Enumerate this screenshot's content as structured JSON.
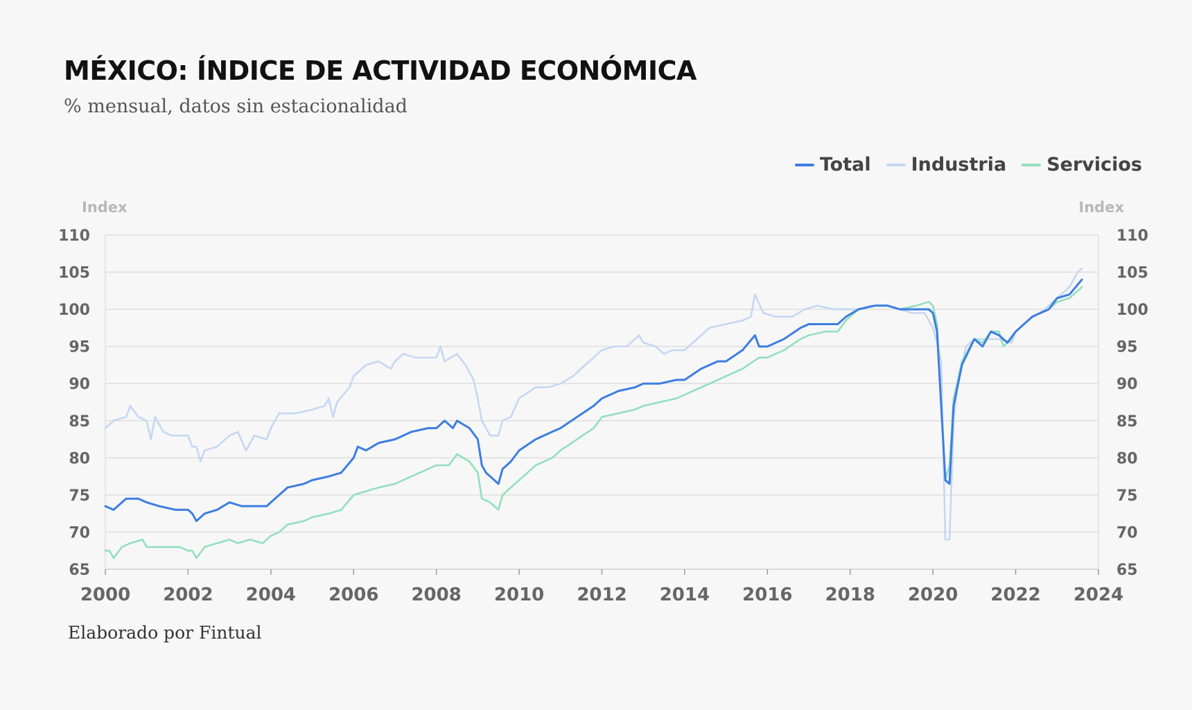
{
  "title": "MÉXICO: ÍNDICE DE ACTIVIDAD ECONÓMICA",
  "subtitle": "% mensual, datos sin estacionalidad",
  "credit": "Elaborado por Fintual",
  "chart_data": {
    "type": "line",
    "title": "MÉXICO: ÍNDICE DE ACTIVIDAD ECONÓMICA",
    "subtitle": "% mensual, datos sin estacionalidad",
    "ylabel_left": "Index",
    "ylabel_right": "Index",
    "xlim": [
      2000,
      2024
    ],
    "ylim": [
      65,
      110
    ],
    "x_ticks": [
      2000,
      2002,
      2004,
      2006,
      2008,
      2010,
      2012,
      2014,
      2016,
      2018,
      2020,
      2022,
      2024
    ],
    "y_ticks": [
      65,
      70,
      75,
      80,
      85,
      90,
      95,
      100,
      105,
      110
    ],
    "grid": true,
    "legend_position": "top-right",
    "series": [
      {
        "name": "Industria",
        "color": "#c5d7f2",
        "points": [
          [
            2000.0,
            84.0
          ],
          [
            2000.2,
            85.0
          ],
          [
            2000.5,
            85.5
          ],
          [
            2000.6,
            87.0
          ],
          [
            2000.8,
            85.5
          ],
          [
            2001.0,
            85.0
          ],
          [
            2001.1,
            82.5
          ],
          [
            2001.2,
            85.5
          ],
          [
            2001.4,
            83.5
          ],
          [
            2001.6,
            83.0
          ],
          [
            2002.0,
            83.0
          ],
          [
            2002.1,
            81.5
          ],
          [
            2002.2,
            81.5
          ],
          [
            2002.3,
            79.5
          ],
          [
            2002.4,
            81.0
          ],
          [
            2002.7,
            81.5
          ],
          [
            2003.0,
            83.0
          ],
          [
            2003.2,
            83.5
          ],
          [
            2003.4,
            81.0
          ],
          [
            2003.6,
            83.0
          ],
          [
            2003.9,
            82.5
          ],
          [
            2004.0,
            84.0
          ],
          [
            2004.2,
            86.0
          ],
          [
            2004.6,
            86.0
          ],
          [
            2005.0,
            86.5
          ],
          [
            2005.3,
            87.0
          ],
          [
            2005.4,
            88.0
          ],
          [
            2005.5,
            85.5
          ],
          [
            2005.6,
            87.5
          ],
          [
            2005.9,
            89.5
          ],
          [
            2006.0,
            91.0
          ],
          [
            2006.3,
            92.5
          ],
          [
            2006.6,
            93.0
          ],
          [
            2006.9,
            92.0
          ],
          [
            2007.0,
            93.0
          ],
          [
            2007.2,
            94.0
          ],
          [
            2007.5,
            93.5
          ],
          [
            2007.8,
            93.5
          ],
          [
            2008.0,
            93.5
          ],
          [
            2008.1,
            95.0
          ],
          [
            2008.2,
            93.0
          ],
          [
            2008.5,
            94.0
          ],
          [
            2008.7,
            92.5
          ],
          [
            2008.9,
            90.5
          ],
          [
            2009.0,
            88.0
          ],
          [
            2009.1,
            85.0
          ],
          [
            2009.3,
            83.0
          ],
          [
            2009.5,
            83.0
          ],
          [
            2009.6,
            85.0
          ],
          [
            2009.8,
            85.5
          ],
          [
            2010.0,
            88.0
          ],
          [
            2010.4,
            89.5
          ],
          [
            2010.7,
            89.5
          ],
          [
            2011.0,
            90.0
          ],
          [
            2011.3,
            91.0
          ],
          [
            2011.6,
            92.5
          ],
          [
            2012.0,
            94.5
          ],
          [
            2012.3,
            95.0
          ],
          [
            2012.6,
            95.0
          ],
          [
            2012.9,
            96.5
          ],
          [
            2013.0,
            95.5
          ],
          [
            2013.3,
            95.0
          ],
          [
            2013.5,
            94.0
          ],
          [
            2013.7,
            94.5
          ],
          [
            2014.0,
            94.5
          ],
          [
            2014.3,
            96.0
          ],
          [
            2014.6,
            97.5
          ],
          [
            2015.0,
            98.0
          ],
          [
            2015.4,
            98.5
          ],
          [
            2015.6,
            99.0
          ],
          [
            2015.7,
            102.0
          ],
          [
            2015.9,
            99.5
          ],
          [
            2016.2,
            99.0
          ],
          [
            2016.6,
            99.0
          ],
          [
            2016.9,
            100.0
          ],
          [
            2017.2,
            100.5
          ],
          [
            2017.6,
            100.0
          ],
          [
            2017.9,
            100.0
          ],
          [
            2018.2,
            100.0
          ],
          [
            2018.5,
            100.5
          ],
          [
            2018.9,
            100.5
          ],
          [
            2019.2,
            100.0
          ],
          [
            2019.5,
            99.5
          ],
          [
            2019.8,
            99.5
          ],
          [
            2020.0,
            97.5
          ],
          [
            2020.1,
            95.5
          ],
          [
            2020.2,
            93.0
          ],
          [
            2020.3,
            69.0
          ],
          [
            2020.4,
            69.0
          ],
          [
            2020.5,
            85.0
          ],
          [
            2020.6,
            90.0
          ],
          [
            2020.8,
            95.0
          ],
          [
            2021.0,
            96.0
          ],
          [
            2021.3,
            96.0
          ],
          [
            2021.6,
            96.0
          ],
          [
            2021.9,
            95.5
          ],
          [
            2022.0,
            97.0
          ],
          [
            2022.3,
            98.5
          ],
          [
            2022.7,
            100.0
          ],
          [
            2023.0,
            101.5
          ],
          [
            2023.3,
            103.0
          ],
          [
            2023.5,
            105.0
          ],
          [
            2023.6,
            105.5
          ]
        ]
      },
      {
        "name": "Servicios",
        "color": "#93dfbd",
        "points": [
          [
            2000.0,
            67.5
          ],
          [
            2000.1,
            67.5
          ],
          [
            2000.2,
            66.5
          ],
          [
            2000.4,
            68.0
          ],
          [
            2000.6,
            68.5
          ],
          [
            2000.9,
            69.0
          ],
          [
            2001.0,
            68.0
          ],
          [
            2001.4,
            68.0
          ],
          [
            2001.8,
            68.0
          ],
          [
            2002.0,
            67.5
          ],
          [
            2002.1,
            67.5
          ],
          [
            2002.2,
            66.5
          ],
          [
            2002.4,
            68.0
          ],
          [
            2002.7,
            68.5
          ],
          [
            2003.0,
            69.0
          ],
          [
            2003.2,
            68.5
          ],
          [
            2003.5,
            69.0
          ],
          [
            2003.8,
            68.5
          ],
          [
            2004.0,
            69.5
          ],
          [
            2004.2,
            70.0
          ],
          [
            2004.4,
            71.0
          ],
          [
            2004.8,
            71.5
          ],
          [
            2005.0,
            72.0
          ],
          [
            2005.4,
            72.5
          ],
          [
            2005.7,
            73.0
          ],
          [
            2006.0,
            75.0
          ],
          [
            2006.3,
            75.5
          ],
          [
            2006.6,
            76.0
          ],
          [
            2007.0,
            76.5
          ],
          [
            2007.4,
            77.5
          ],
          [
            2007.8,
            78.5
          ],
          [
            2008.0,
            79.0
          ],
          [
            2008.3,
            79.0
          ],
          [
            2008.5,
            80.5
          ],
          [
            2008.8,
            79.5
          ],
          [
            2009.0,
            78.0
          ],
          [
            2009.1,
            74.5
          ],
          [
            2009.3,
            74.0
          ],
          [
            2009.4,
            73.5
          ],
          [
            2009.5,
            73.0
          ],
          [
            2009.6,
            75.0
          ],
          [
            2009.8,
            76.0
          ],
          [
            2010.0,
            77.0
          ],
          [
            2010.4,
            79.0
          ],
          [
            2010.8,
            80.0
          ],
          [
            2011.0,
            81.0
          ],
          [
            2011.4,
            82.5
          ],
          [
            2011.8,
            84.0
          ],
          [
            2012.0,
            85.5
          ],
          [
            2012.4,
            86.0
          ],
          [
            2012.8,
            86.5
          ],
          [
            2013.0,
            87.0
          ],
          [
            2013.4,
            87.5
          ],
          [
            2013.8,
            88.0
          ],
          [
            2014.0,
            88.5
          ],
          [
            2014.4,
            89.5
          ],
          [
            2014.8,
            90.5
          ],
          [
            2015.0,
            91.0
          ],
          [
            2015.4,
            92.0
          ],
          [
            2015.8,
            93.5
          ],
          [
            2016.0,
            93.5
          ],
          [
            2016.4,
            94.5
          ],
          [
            2016.8,
            96.0
          ],
          [
            2017.0,
            96.5
          ],
          [
            2017.4,
            97.0
          ],
          [
            2017.7,
            97.0
          ],
          [
            2017.9,
            98.5
          ],
          [
            2018.2,
            100.0
          ],
          [
            2018.6,
            100.5
          ],
          [
            2018.9,
            100.5
          ],
          [
            2019.2,
            100.0
          ],
          [
            2019.6,
            100.5
          ],
          [
            2019.9,
            101.0
          ],
          [
            2020.0,
            100.5
          ],
          [
            2020.1,
            98.0
          ],
          [
            2020.3,
            77.0
          ],
          [
            2020.4,
            79.0
          ],
          [
            2020.5,
            88.0
          ],
          [
            2020.7,
            93.0
          ],
          [
            2021.0,
            96.0
          ],
          [
            2021.2,
            95.5
          ],
          [
            2021.4,
            97.0
          ],
          [
            2021.6,
            97.0
          ],
          [
            2021.7,
            95.0
          ],
          [
            2021.9,
            96.0
          ],
          [
            2022.0,
            97.0
          ],
          [
            2022.4,
            99.0
          ],
          [
            2022.8,
            100.0
          ],
          [
            2023.0,
            101.0
          ],
          [
            2023.3,
            101.5
          ],
          [
            2023.6,
            103.0
          ]
        ]
      },
      {
        "name": "Total",
        "color": "#3d7de0",
        "points": [
          [
            2000.0,
            73.5
          ],
          [
            2000.2,
            73.0
          ],
          [
            2000.5,
            74.5
          ],
          [
            2000.8,
            74.5
          ],
          [
            2001.0,
            74.0
          ],
          [
            2001.3,
            73.5
          ],
          [
            2001.7,
            73.0
          ],
          [
            2002.0,
            73.0
          ],
          [
            2002.1,
            72.5
          ],
          [
            2002.2,
            71.5
          ],
          [
            2002.4,
            72.5
          ],
          [
            2002.7,
            73.0
          ],
          [
            2003.0,
            74.0
          ],
          [
            2003.3,
            73.5
          ],
          [
            2003.6,
            73.5
          ],
          [
            2003.9,
            73.5
          ],
          [
            2004.0,
            74.0
          ],
          [
            2004.2,
            75.0
          ],
          [
            2004.4,
            76.0
          ],
          [
            2004.8,
            76.5
          ],
          [
            2005.0,
            77.0
          ],
          [
            2005.4,
            77.5
          ],
          [
            2005.7,
            78.0
          ],
          [
            2006.0,
            80.0
          ],
          [
            2006.1,
            81.5
          ],
          [
            2006.3,
            81.0
          ],
          [
            2006.6,
            82.0
          ],
          [
            2007.0,
            82.5
          ],
          [
            2007.4,
            83.5
          ],
          [
            2007.8,
            84.0
          ],
          [
            2008.0,
            84.0
          ],
          [
            2008.2,
            85.0
          ],
          [
            2008.4,
            84.0
          ],
          [
            2008.5,
            85.0
          ],
          [
            2008.8,
            84.0
          ],
          [
            2009.0,
            82.5
          ],
          [
            2009.1,
            79.0
          ],
          [
            2009.2,
            78.0
          ],
          [
            2009.4,
            77.0
          ],
          [
            2009.5,
            76.5
          ],
          [
            2009.6,
            78.5
          ],
          [
            2009.8,
            79.5
          ],
          [
            2010.0,
            81.0
          ],
          [
            2010.4,
            82.5
          ],
          [
            2010.8,
            83.5
          ],
          [
            2011.0,
            84.0
          ],
          [
            2011.4,
            85.5
          ],
          [
            2011.8,
            87.0
          ],
          [
            2012.0,
            88.0
          ],
          [
            2012.4,
            89.0
          ],
          [
            2012.8,
            89.5
          ],
          [
            2013.0,
            90.0
          ],
          [
            2013.4,
            90.0
          ],
          [
            2013.8,
            90.5
          ],
          [
            2014.0,
            90.5
          ],
          [
            2014.4,
            92.0
          ],
          [
            2014.8,
            93.0
          ],
          [
            2015.0,
            93.0
          ],
          [
            2015.4,
            94.5
          ],
          [
            2015.7,
            96.5
          ],
          [
            2015.8,
            95.0
          ],
          [
            2016.0,
            95.0
          ],
          [
            2016.4,
            96.0
          ],
          [
            2016.8,
            97.5
          ],
          [
            2017.0,
            98.0
          ],
          [
            2017.4,
            98.0
          ],
          [
            2017.7,
            98.0
          ],
          [
            2017.9,
            99.0
          ],
          [
            2018.2,
            100.0
          ],
          [
            2018.6,
            100.5
          ],
          [
            2018.9,
            100.5
          ],
          [
            2019.2,
            100.0
          ],
          [
            2019.6,
            100.0
          ],
          [
            2019.9,
            100.0
          ],
          [
            2020.0,
            99.5
          ],
          [
            2020.1,
            97.0
          ],
          [
            2020.3,
            77.0
          ],
          [
            2020.4,
            76.5
          ],
          [
            2020.5,
            87.0
          ],
          [
            2020.7,
            92.5
          ],
          [
            2021.0,
            96.0
          ],
          [
            2021.2,
            95.0
          ],
          [
            2021.4,
            97.0
          ],
          [
            2021.6,
            96.5
          ],
          [
            2021.8,
            95.5
          ],
          [
            2022.0,
            97.0
          ],
          [
            2022.4,
            99.0
          ],
          [
            2022.8,
            100.0
          ],
          [
            2023.0,
            101.5
          ],
          [
            2023.3,
            102.0
          ],
          [
            2023.6,
            104.0
          ]
        ]
      }
    ],
    "legend": [
      {
        "name": "Total",
        "color": "#3d7de0"
      },
      {
        "name": "Industria",
        "color": "#c5d7f2"
      },
      {
        "name": "Servicios",
        "color": "#93dfbd"
      }
    ]
  }
}
